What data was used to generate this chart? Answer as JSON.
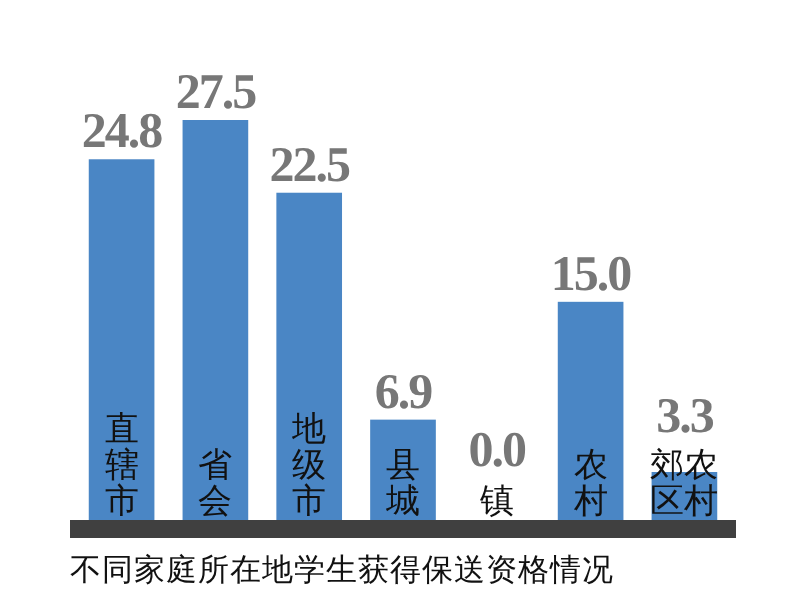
{
  "chart_data": {
    "type": "bar",
    "title": "不同家庭所在地学生获得保送资格情况",
    "categories": [
      "直辖市",
      "省会",
      "地级市",
      "县城",
      "镇",
      "农村",
      "郊区农村"
    ],
    "values": [
      24.8,
      27.5,
      22.5,
      6.9,
      0.0,
      15.0,
      3.3
    ],
    "value_labels": [
      "24.8",
      "27.5",
      "22.5",
      "6.9",
      "0.0",
      "15.0",
      "3.3"
    ],
    "color": "#4a86c5"
  }
}
